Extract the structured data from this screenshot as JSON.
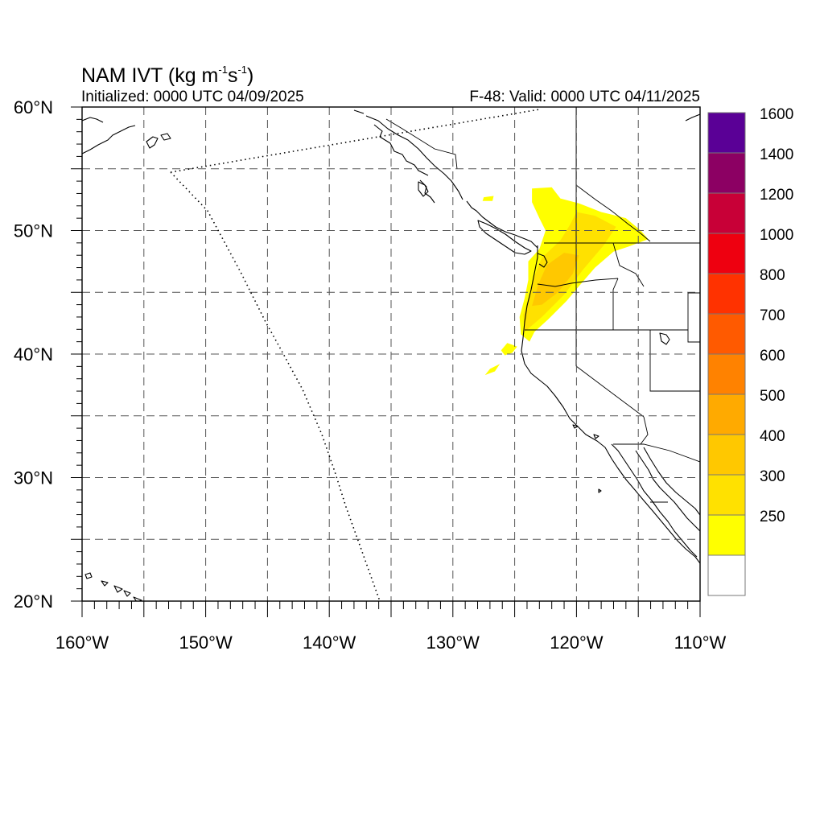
{
  "title": {
    "main": "NAM IVT (kg m",
    "exp1": "-1",
    "mid": "s",
    "exp2": "-1",
    "close": ")"
  },
  "initialized": "Initialized: 0000 UTC 04/09/2025",
  "valid": "F-48: Valid: 0000 UTC 04/11/2025",
  "axes": {
    "lon_range": [
      -160,
      -110
    ],
    "lat_range": [
      20,
      60
    ],
    "grid_step_deg": 5,
    "x_ticks": [
      {
        "value": -160,
        "label": "160°W"
      },
      {
        "value": -150,
        "label": "150°W"
      },
      {
        "value": -140,
        "label": "140°W"
      },
      {
        "value": -130,
        "label": "130°W"
      },
      {
        "value": -120,
        "label": "120°W"
      },
      {
        "value": -110,
        "label": "110°W"
      }
    ],
    "y_ticks": [
      {
        "value": 20,
        "label": "20°N"
      },
      {
        "value": 30,
        "label": "30°N"
      },
      {
        "value": 40,
        "label": "40°N"
      },
      {
        "value": 50,
        "label": "50°N"
      },
      {
        "value": 60,
        "label": "60°N"
      }
    ]
  },
  "colorbar": {
    "levels": [
      {
        "color": "#ffff00"
      },
      {
        "color": "#ffe100",
        "label": "250"
      },
      {
        "color": "#ffc800",
        "label": "300"
      },
      {
        "color": "#ffaa00",
        "label": "400"
      },
      {
        "color": "#ff8200",
        "label": "500"
      },
      {
        "color": "#ff5a00",
        "label": "600"
      },
      {
        "color": "#ff3200",
        "label": "700"
      },
      {
        "color": "#ee0010",
        "label": "800"
      },
      {
        "color": "#c80037",
        "label": "1000"
      },
      {
        "color": "#8c0063",
        "label": "1200"
      },
      {
        "color": "#5a0096",
        "label": "1400"
      }
    ],
    "top_label": "1600"
  },
  "ivt_contours": [
    {
      "level_color": "#ffff00",
      "points": [
        [
          -123.8,
          41.0
        ],
        [
          -124.5,
          41.6
        ],
        [
          -124.6,
          43.0
        ],
        [
          -124.2,
          44.5
        ],
        [
          -123.9,
          46.0
        ],
        [
          -123.9,
          47.5
        ],
        [
          -123.0,
          48.5
        ],
        [
          -122.5,
          50.0
        ],
        [
          -123.0,
          51.0
        ],
        [
          -123.6,
          52.3
        ],
        [
          -123.6,
          53.4
        ],
        [
          -122.0,
          53.5
        ],
        [
          -121.3,
          52.6
        ],
        [
          -119.8,
          52.2
        ],
        [
          -118.0,
          51.5
        ],
        [
          -116.0,
          51.0
        ],
        [
          -114.8,
          50.0
        ],
        [
          -114.2,
          49.3
        ],
        [
          -115.8,
          48.7
        ],
        [
          -117.0,
          48.3
        ],
        [
          -118.5,
          47.0
        ],
        [
          -119.8,
          45.5
        ],
        [
          -120.8,
          44.3
        ],
        [
          -122.3,
          42.8
        ],
        [
          -123.4,
          41.8
        ]
      ]
    },
    {
      "level_color": "#ffff00",
      "points": [
        [
          -125.6,
          40.9
        ],
        [
          -124.8,
          40.6
        ],
        [
          -125.2,
          40.1
        ],
        [
          -125.8,
          39.9
        ],
        [
          -126.1,
          40.3
        ]
      ]
    },
    {
      "level_color": "#ffff00",
      "points": [
        [
          -127.0,
          38.8
        ],
        [
          -126.2,
          39.2
        ],
        [
          -126.6,
          38.6
        ],
        [
          -127.4,
          38.3
        ]
      ]
    },
    {
      "level_color": "#ffff00",
      "points": [
        [
          -127.5,
          52.7
        ],
        [
          -126.7,
          52.8
        ],
        [
          -126.8,
          52.4
        ],
        [
          -127.6,
          52.4
        ]
      ]
    },
    {
      "level_color": "#ffe100",
      "points": [
        [
          -124.2,
          41.8
        ],
        [
          -124.3,
          43.2
        ],
        [
          -123.8,
          44.8
        ],
        [
          -123.4,
          46.3
        ],
        [
          -122.8,
          47.8
        ],
        [
          -121.3,
          49.2
        ],
        [
          -120.5,
          50.5
        ],
        [
          -120.0,
          51.5
        ],
        [
          -118.5,
          51.2
        ],
        [
          -116.8,
          50.3
        ],
        [
          -117.8,
          48.8
        ],
        [
          -119.5,
          46.8
        ],
        [
          -121.0,
          44.8
        ],
        [
          -122.8,
          43.0
        ]
      ]
    },
    {
      "level_color": "#ffc800",
      "points": [
        [
          -123.6,
          43.9
        ],
        [
          -123.1,
          45.6
        ],
        [
          -122.4,
          47.2
        ],
        [
          -121.0,
          48.2
        ],
        [
          -119.8,
          48.0
        ],
        [
          -120.3,
          46.5
        ],
        [
          -121.5,
          45.0
        ],
        [
          -122.8,
          44.0
        ]
      ]
    }
  ]
}
